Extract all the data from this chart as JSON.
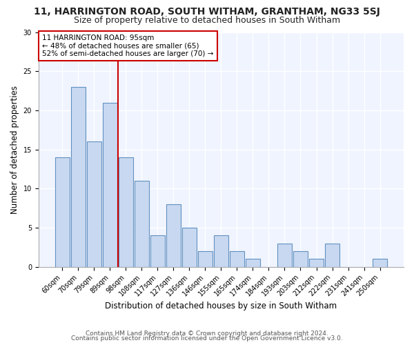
{
  "title": "11, HARRINGTON ROAD, SOUTH WITHAM, GRANTHAM, NG33 5SJ",
  "subtitle": "Size of property relative to detached houses in South Witham",
  "xlabel": "Distribution of detached houses by size in South Witham",
  "ylabel": "Number of detached properties",
  "categories": [
    "60sqm",
    "70sqm",
    "79sqm",
    "89sqm",
    "98sqm",
    "108sqm",
    "117sqm",
    "127sqm",
    "136sqm",
    "146sqm",
    "155sqm",
    "165sqm",
    "174sqm",
    "184sqm",
    "193sqm",
    "203sqm",
    "212sqm",
    "222sqm",
    "231sqm",
    "241sqm",
    "250sqm"
  ],
  "values": [
    14,
    23,
    16,
    21,
    14,
    11,
    4,
    8,
    5,
    2,
    4,
    2,
    1,
    0,
    3,
    2,
    1,
    3,
    0,
    0,
    1
  ],
  "bar_color": "#c8d8f0",
  "bar_edge_color": "#6090c0",
  "vline_index": 4,
  "vline_color": "#cc0000",
  "annotation_text": "11 HARRINGTON ROAD: 95sqm\n← 48% of detached houses are smaller (65)\n52% of semi-detached houses are larger (70) →",
  "annotation_box_edgecolor": "#cc0000",
  "annotation_box_facecolor": "#ffffff",
  "ylim": [
    0,
    30
  ],
  "yticks": [
    0,
    5,
    10,
    15,
    20,
    25,
    30
  ],
  "footer1": "Contains HM Land Registry data © Crown copyright and database right 2024.",
  "footer2": "Contains public sector information licensed under the Open Government Licence v3.0.",
  "bg_color": "#ffffff",
  "plot_bg_color": "#f0f4ff",
  "title_fontsize": 10,
  "subtitle_fontsize": 9,
  "tick_fontsize": 7,
  "label_fontsize": 8.5,
  "footer_fontsize": 6.5
}
